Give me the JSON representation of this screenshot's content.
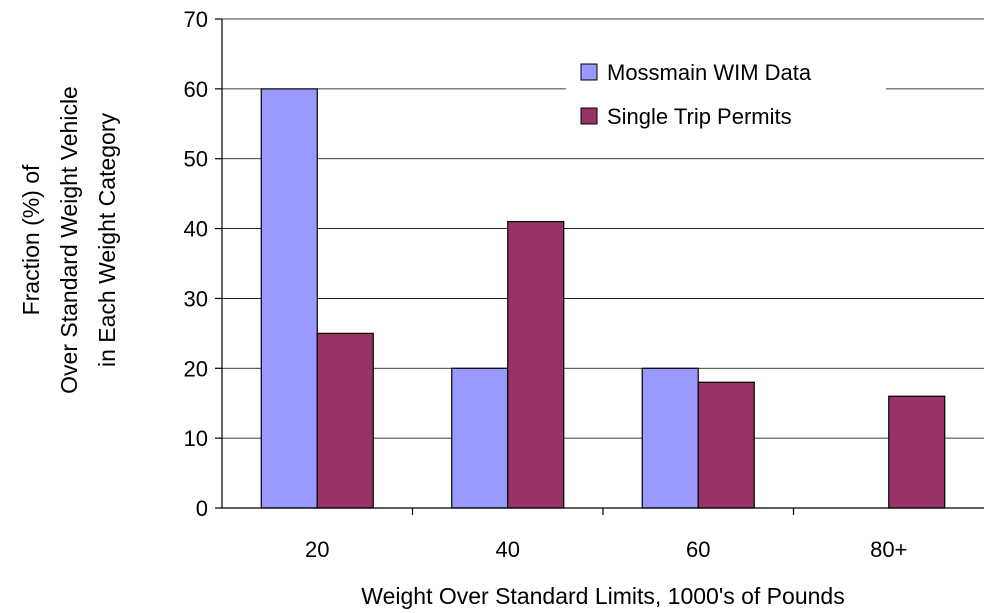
{
  "chart_data": {
    "type": "bar",
    "categories": [
      "20",
      "40",
      "60",
      "80+"
    ],
    "series": [
      {
        "name": "Mossmain WIM Data",
        "values": [
          60,
          20,
          20,
          0
        ],
        "color": "#9999ff"
      },
      {
        "name": "Single Trip Permits",
        "values": [
          25,
          41,
          18,
          16
        ],
        "color": "#993366"
      }
    ],
    "xlabel": "Weight Over Standard Limits, 1000's of Pounds",
    "ylabel_lines": [
      "Fraction (%) of",
      "Over Standard Weight Vehicle",
      "in Each Weight Category"
    ],
    "ylim": [
      0,
      70
    ],
    "yticks": [
      0,
      10,
      20,
      30,
      40,
      50,
      60,
      70
    ],
    "grid": true,
    "legend_position": "top-right"
  }
}
